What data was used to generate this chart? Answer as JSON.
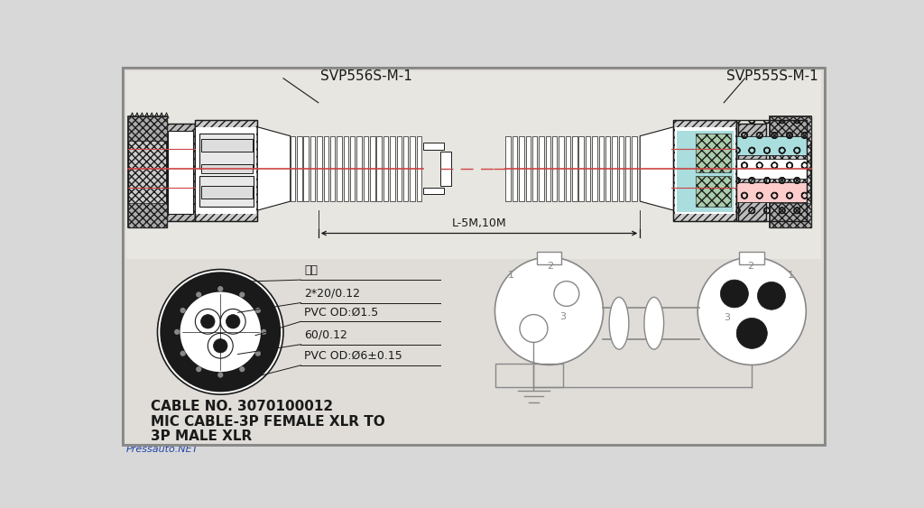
{
  "bg_color": "#d8d8d8",
  "inner_bg": "#e8e8e0",
  "line_color": "#333333",
  "dark_color": "#1a1a1a",
  "title_left": "SVP556S-M-1",
  "title_right": "SVP555S-M-1",
  "dimension_label": "L-5M,10M",
  "cable_no": "CABLE NO. 3070100012",
  "mic_label_1": "MIC CABLE-3P FEMALE XLR TO",
  "mic_label_2": "3P MALE XLR",
  "watermark": "Pressauto.NET",
  "cross_section_labels": [
    "棉线",
    "2*20/0.12",
    "PVC OD:Ø1.5",
    "60/0.12",
    "PVC OD:Ø6±0.15"
  ],
  "red_line_color": "#cc4444",
  "gray_line_color": "#888888",
  "cyan_fill": "#aadddd",
  "green_fill": "#aaccaa",
  "pink_fill": "#ffcccc",
  "hatch_color": "#999999",
  "border_color": "#888888"
}
